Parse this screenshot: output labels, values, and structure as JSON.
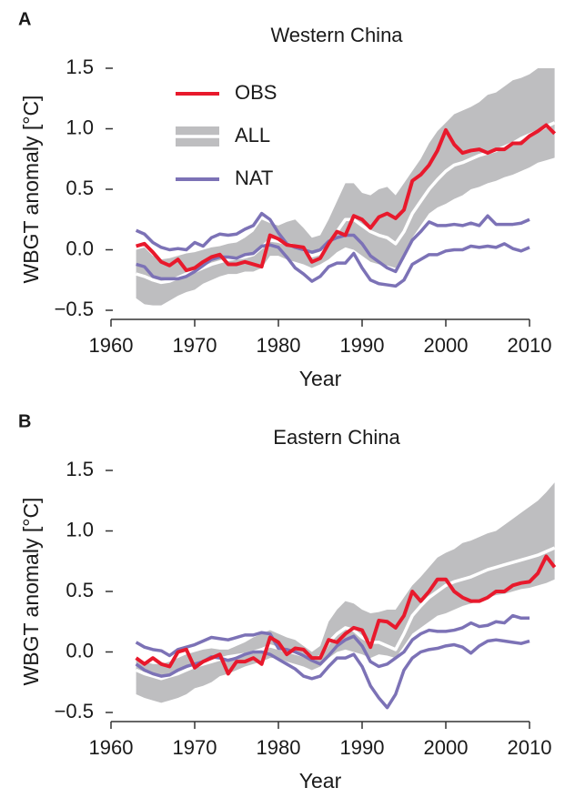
{
  "chart_data": [
    {
      "type": "line",
      "panel_label": "A",
      "title": "Western China",
      "x_label": "Year",
      "y_label": "WBGT anomaly [°C]",
      "legend": "upper left",
      "x": [
        1963,
        1964,
        1965,
        1966,
        1967,
        1968,
        1969,
        1970,
        1971,
        1972,
        1973,
        1974,
        1975,
        1976,
        1977,
        1978,
        1979,
        1980,
        1981,
        1982,
        1983,
        1984,
        1985,
        1986,
        1987,
        1988,
        1989,
        1990,
        1991,
        1992,
        1993,
        1994,
        1995,
        1996,
        1997,
        1998,
        1999,
        2000,
        2001,
        2002,
        2003,
        2004,
        2005,
        2006,
        2007,
        2008,
        2009,
        2010,
        2011,
        2012,
        2013
      ],
      "xlim": [
        1960,
        2013
      ],
      "xticks": [
        1960,
        1970,
        1980,
        1990,
        2000,
        2010
      ],
      "ylim": [
        -0.5,
        1.5
      ],
      "yticks": [
        {
          "value": 1.5,
          "label": "1.5"
        },
        {
          "value": 1,
          "label": "1.0"
        },
        0.5,
        {
          "value": 0,
          "label": "0.0"
        },
        {
          "value": -0.5,
          "label": "−0.5"
        }
      ],
      "series": [
        {
          "name": "OBS",
          "color": "#e8192c",
          "values": [
            0.03,
            0.05,
            -0.02,
            -0.1,
            -0.13,
            -0.08,
            -0.17,
            -0.15,
            -0.1,
            -0.06,
            -0.04,
            -0.12,
            -0.12,
            -0.1,
            -0.12,
            -0.14,
            0.12,
            0.09,
            0.04,
            0.03,
            0.02,
            -0.1,
            -0.07,
            0.05,
            0.15,
            0.12,
            0.28,
            0.25,
            0.18,
            0.27,
            0.3,
            0.26,
            0.33,
            0.57,
            0.62,
            0.7,
            0.82,
            0.99,
            0.87,
            0.8,
            0.82,
            0.83,
            0.8,
            0.83,
            0.83,
            0.88,
            0.88,
            0.94,
            0.98,
            1.03,
            0.96
          ]
        },
        {
          "name": "ALL",
          "color": "#bebec0",
          "mean_color": "#ffffff",
          "upper": [
            0.0,
            0.02,
            -0.05,
            -0.08,
            -0.07,
            -0.05,
            -0.03,
            -0.02,
            0.0,
            0.02,
            0.03,
            0.05,
            0.06,
            0.1,
            0.15,
            0.25,
            0.22,
            0.2,
            0.23,
            0.25,
            0.18,
            0.1,
            0.12,
            0.25,
            0.4,
            0.55,
            0.55,
            0.47,
            0.45,
            0.5,
            0.52,
            0.45,
            0.55,
            0.65,
            0.75,
            0.88,
            0.98,
            1.05,
            1.12,
            1.15,
            1.18,
            1.22,
            1.28,
            1.3,
            1.35,
            1.4,
            1.42,
            1.45,
            1.5,
            1.5,
            1.5
          ],
          "lower": [
            -0.4,
            -0.45,
            -0.46,
            -0.46,
            -0.42,
            -0.38,
            -0.35,
            -0.33,
            -0.28,
            -0.25,
            -0.22,
            -0.2,
            -0.2,
            -0.18,
            -0.18,
            -0.15,
            -0.05,
            -0.05,
            -0.08,
            -0.1,
            -0.12,
            -0.15,
            -0.12,
            -0.08,
            -0.02,
            0.02,
            0.0,
            -0.05,
            -0.1,
            -0.12,
            -0.13,
            -0.15,
            -0.08,
            0.1,
            0.2,
            0.3,
            0.35,
            0.38,
            0.42,
            0.45,
            0.5,
            0.52,
            0.55,
            0.57,
            0.6,
            0.62,
            0.65,
            0.68,
            0.72,
            0.74,
            0.76
          ],
          "mean": [
            -0.2,
            -0.22,
            -0.25,
            -0.27,
            -0.26,
            -0.23,
            -0.2,
            -0.18,
            -0.15,
            -0.12,
            -0.1,
            -0.08,
            -0.07,
            -0.06,
            -0.04,
            0.02,
            0.08,
            0.07,
            0.05,
            0.03,
            0.0,
            -0.05,
            -0.03,
            0.05,
            0.15,
            0.25,
            0.25,
            0.2,
            0.15,
            0.12,
            0.1,
            0.05,
            0.15,
            0.3,
            0.4,
            0.5,
            0.58,
            0.65,
            0.7,
            0.72,
            0.75,
            0.78,
            0.8,
            0.82,
            0.85,
            0.88,
            0.92,
            0.95,
            0.98,
            1.02,
            1.05
          ]
        },
        {
          "name": "NAT",
          "color": "#7c72b6",
          "upper": [
            0.16,
            0.13,
            0.06,
            0.02,
            0.0,
            0.01,
            0.0,
            0.06,
            0.03,
            0.1,
            0.13,
            0.12,
            0.13,
            0.17,
            0.2,
            0.3,
            0.25,
            0.14,
            0.05,
            0.02,
            0.0,
            -0.02,
            0.0,
            0.07,
            0.1,
            0.12,
            0.12,
            0.05,
            -0.05,
            -0.1,
            -0.15,
            -0.18,
            -0.05,
            0.08,
            0.15,
            0.23,
            0.2,
            0.2,
            0.21,
            0.2,
            0.22,
            0.2,
            0.28,
            0.21,
            0.21,
            0.21,
            0.22,
            0.25,
            null,
            null,
            null
          ],
          "lower": [
            -0.12,
            -0.14,
            -0.22,
            -0.24,
            -0.24,
            -0.24,
            -0.22,
            -0.18,
            -0.13,
            -0.08,
            -0.06,
            -0.06,
            -0.07,
            -0.04,
            -0.03,
            0.03,
            0.04,
            0.02,
            -0.06,
            -0.15,
            -0.2,
            -0.26,
            -0.22,
            -0.14,
            -0.11,
            -0.11,
            -0.03,
            -0.15,
            -0.25,
            -0.28,
            -0.29,
            -0.3,
            -0.25,
            -0.12,
            -0.08,
            -0.04,
            -0.04,
            -0.01,
            0.0,
            0.0,
            0.03,
            0.02,
            0.03,
            0.02,
            0.05,
            0.01,
            -0.01,
            0.02,
            null,
            null,
            null
          ]
        }
      ]
    },
    {
      "type": "line",
      "panel_label": "B",
      "title": "Eastern China",
      "x_label": "Year",
      "y_label": "WBGT anomaly [°C]",
      "x": [
        1963,
        1964,
        1965,
        1966,
        1967,
        1968,
        1969,
        1970,
        1971,
        1972,
        1973,
        1974,
        1975,
        1976,
        1977,
        1978,
        1979,
        1980,
        1981,
        1982,
        1983,
        1984,
        1985,
        1986,
        1987,
        1988,
        1989,
        1990,
        1991,
        1992,
        1993,
        1994,
        1995,
        1996,
        1997,
        1998,
        1999,
        2000,
        2001,
        2002,
        2003,
        2004,
        2005,
        2006,
        2007,
        2008,
        2009,
        2010,
        2011,
        2012,
        2013
      ],
      "xlim": [
        1960,
        2013
      ],
      "xticks": [
        1960,
        1970,
        1980,
        1990,
        2000,
        2010
      ],
      "ylim": [
        -0.5,
        1.5
      ],
      "yticks": [
        {
          "value": 1.5,
          "label": "1.5"
        },
        {
          "value": 1,
          "label": "1.0"
        },
        0.5,
        {
          "value": 0,
          "label": "0.0"
        },
        {
          "value": -0.5,
          "label": "−0.5"
        }
      ],
      "series": [
        {
          "name": "OBS",
          "color": "#e8192c",
          "values": [
            -0.05,
            -0.1,
            -0.05,
            -0.1,
            -0.12,
            0.0,
            0.02,
            -0.13,
            -0.08,
            -0.05,
            -0.02,
            -0.18,
            -0.08,
            -0.08,
            -0.05,
            -0.1,
            0.12,
            0.08,
            -0.02,
            0.03,
            0.02,
            -0.05,
            -0.05,
            0.1,
            0.08,
            0.15,
            0.2,
            0.18,
            0.04,
            0.26,
            0.25,
            0.2,
            0.3,
            0.5,
            0.42,
            0.5,
            0.6,
            0.6,
            0.5,
            0.45,
            0.42,
            0.42,
            0.45,
            0.5,
            0.5,
            0.55,
            0.57,
            0.58,
            0.65,
            0.79,
            0.7
          ]
        },
        {
          "name": "ALL",
          "color": "#bebec0",
          "mean_color": "#ffffff",
          "upper": [
            -0.05,
            -0.08,
            -0.1,
            -0.1,
            -0.08,
            -0.05,
            -0.02,
            0.0,
            0.02,
            0.03,
            0.02,
            0.02,
            0.05,
            0.08,
            0.12,
            0.15,
            0.18,
            0.15,
            0.12,
            0.1,
            0.05,
            0.0,
            0.05,
            0.25,
            0.35,
            0.42,
            0.4,
            0.35,
            0.32,
            0.33,
            0.35,
            0.35,
            0.45,
            0.55,
            0.62,
            0.7,
            0.78,
            0.82,
            0.85,
            0.9,
            0.92,
            0.95,
            0.98,
            1.0,
            1.05,
            1.1,
            1.15,
            1.2,
            1.25,
            1.32,
            1.4
          ],
          "lower": [
            -0.35,
            -0.38,
            -0.4,
            -0.42,
            -0.4,
            -0.38,
            -0.35,
            -0.3,
            -0.28,
            -0.25,
            -0.2,
            -0.18,
            -0.15,
            -0.12,
            -0.1,
            -0.08,
            -0.05,
            -0.05,
            -0.08,
            -0.1,
            -0.12,
            -0.15,
            -0.12,
            -0.05,
            0.0,
            0.02,
            0.0,
            -0.02,
            -0.05,
            -0.02,
            -0.03,
            -0.05,
            0.05,
            0.15,
            0.2,
            0.25,
            0.3,
            0.32,
            0.35,
            0.38,
            0.4,
            0.42,
            0.45,
            0.47,
            0.48,
            0.5,
            0.52,
            0.53,
            0.55,
            0.57,
            0.6
          ],
          "mean": [
            -0.15,
            -0.18,
            -0.2,
            -0.22,
            -0.2,
            -0.18,
            -0.15,
            -0.12,
            -0.1,
            -0.08,
            -0.06,
            -0.04,
            -0.03,
            -0.02,
            0.0,
            0.02,
            0.05,
            0.03,
            0.01,
            -0.01,
            -0.03,
            -0.06,
            -0.04,
            0.08,
            0.15,
            0.2,
            0.18,
            0.12,
            0.08,
            0.08,
            0.05,
            0.02,
            0.15,
            0.3,
            0.38,
            0.45,
            0.5,
            0.55,
            0.58,
            0.6,
            0.62,
            0.65,
            0.68,
            0.7,
            0.72,
            0.74,
            0.76,
            0.78,
            0.8,
            0.83,
            0.86
          ]
        },
        {
          "name": "NAT",
          "color": "#7c72b6",
          "upper": [
            0.08,
            0.04,
            0.02,
            0.01,
            -0.03,
            0.02,
            0.04,
            0.06,
            0.09,
            0.12,
            0.11,
            0.1,
            0.12,
            0.14,
            0.14,
            0.16,
            0.15,
            0.03,
            0.02,
            0.0,
            -0.03,
            -0.07,
            -0.1,
            -0.03,
            0.05,
            0.1,
            0.13,
            0.05,
            -0.08,
            -0.12,
            -0.1,
            -0.05,
            0.0,
            0.1,
            0.15,
            0.18,
            0.17,
            0.17,
            0.18,
            0.2,
            0.24,
            0.21,
            0.22,
            0.25,
            0.24,
            0.3,
            0.28,
            0.28,
            null,
            null,
            null
          ],
          "lower": [
            -0.1,
            -0.15,
            -0.18,
            -0.2,
            -0.19,
            -0.15,
            -0.12,
            -0.1,
            -0.08,
            -0.04,
            -0.05,
            -0.07,
            -0.05,
            -0.02,
            0.0,
            0.0,
            -0.02,
            -0.06,
            -0.1,
            -0.14,
            -0.2,
            -0.22,
            -0.2,
            -0.12,
            -0.05,
            -0.05,
            -0.02,
            -0.12,
            -0.28,
            -0.38,
            -0.46,
            -0.35,
            -0.15,
            -0.05,
            0.0,
            0.02,
            0.03,
            0.05,
            0.06,
            0.04,
            -0.01,
            0.05,
            0.09,
            0.1,
            0.09,
            0.08,
            0.07,
            0.09,
            null,
            null,
            null
          ]
        }
      ]
    }
  ]
}
